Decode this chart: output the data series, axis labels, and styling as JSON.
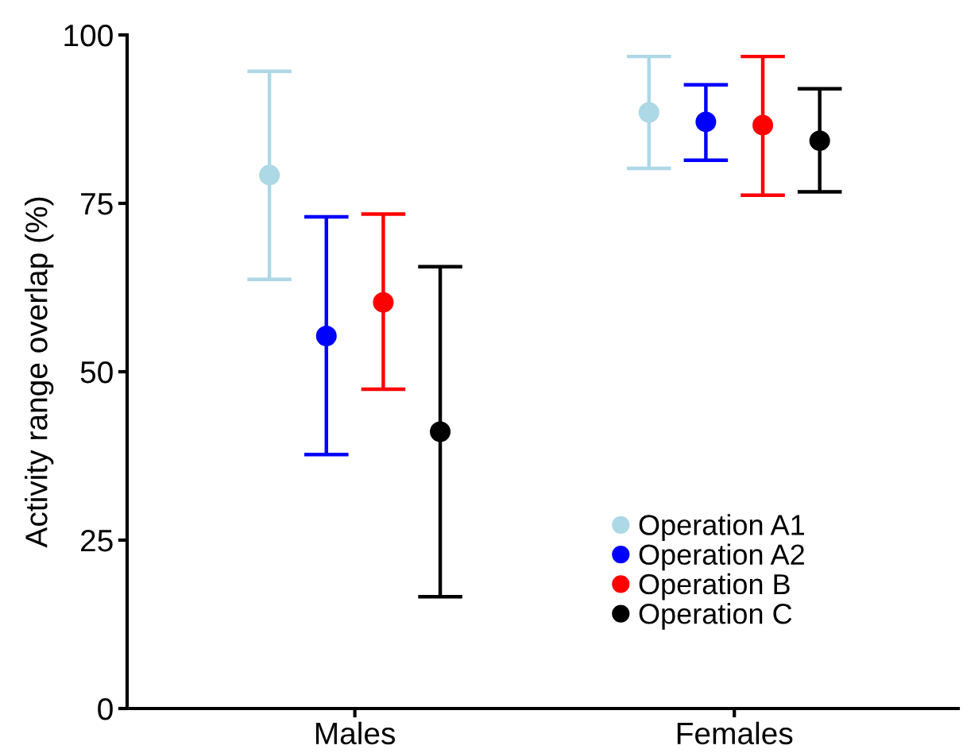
{
  "chart_data": {
    "type": "scatter",
    "ylabel": "Activity range overlap (%)",
    "categories": [
      "Males",
      "Females"
    ],
    "series": [
      {
        "name": "Operation A1",
        "color": "#add8e6",
        "values": [
          79.2,
          88.5
        ],
        "errors": [
          [
            63.7,
            94.6
          ],
          [
            80.2,
            96.8
          ]
        ]
      },
      {
        "name": "Operation A2",
        "color": "#0000ff",
        "values": [
          55.3,
          87.1
        ],
        "errors": [
          [
            37.7,
            73.0
          ],
          [
            81.4,
            92.6
          ]
        ]
      },
      {
        "name": "Operation B",
        "color": "#ff0000",
        "values": [
          60.3,
          86.6
        ],
        "errors": [
          [
            47.4,
            73.4
          ],
          [
            76.2,
            96.8
          ]
        ]
      },
      {
        "name": "Operation C",
        "color": "#000000",
        "values": [
          41.1,
          84.3
        ],
        "errors": [
          [
            16.6,
            65.6
          ],
          [
            76.7,
            92.0
          ]
        ]
      }
    ],
    "ylim": [
      0,
      100
    ],
    "yticks": [
      0,
      25,
      50,
      75,
      100
    ],
    "grid": false,
    "legend": "bottom right",
    "marker": "circle"
  }
}
